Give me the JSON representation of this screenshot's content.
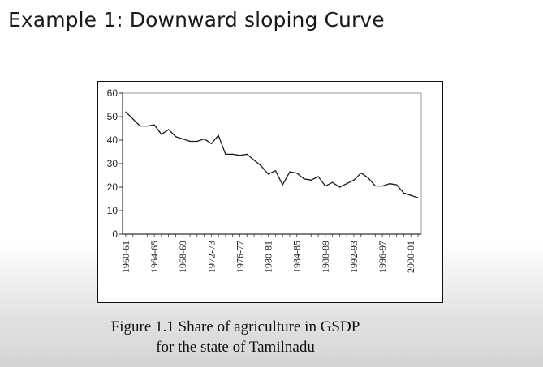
{
  "slide": {
    "title": "Example 1: Downward sloping Curve"
  },
  "caption": {
    "line1": "Figure 1.1 Share of agriculture in GSDP",
    "line2": "for the state of Tamilnadu"
  },
  "chart_data": {
    "type": "line",
    "title": "",
    "xlabel": "",
    "ylabel": "",
    "ylim": [
      0,
      60
    ],
    "yticks": [
      0,
      10,
      20,
      30,
      40,
      50,
      60
    ],
    "xtick_labels": [
      "1960-61",
      "1964-65",
      "1968-69",
      "1972-73",
      "1976-77",
      "1980-81",
      "1984-85",
      "1988-89",
      "1992-93",
      "1996-97",
      "2000-01"
    ],
    "series": [
      {
        "x": [
          "1960-61",
          "1961-62",
          "1962-63",
          "1963-64",
          "1964-65",
          "1965-66",
          "1966-67",
          "1967-68",
          "1968-69",
          "1969-70",
          "1970-71",
          "1971-72",
          "1972-73",
          "1973-74",
          "1974-75",
          "1975-76",
          "1976-77",
          "1977-78",
          "1978-79",
          "1979-80",
          "1980-81",
          "1981-82",
          "1982-83",
          "1983-84",
          "1984-85",
          "1985-86",
          "1986-87",
          "1987-88",
          "1988-89",
          "1989-90",
          "1990-91",
          "1991-92",
          "1992-93",
          "1993-94",
          "1994-95",
          "1995-96",
          "1996-97",
          "1997-98",
          "1998-99",
          "1999-00",
          "2000-01",
          "2001-02"
        ],
        "values": [
          52,
          49,
          46,
          46,
          46.5,
          42.5,
          44.5,
          41.5,
          40.5,
          39.5,
          39.5,
          40.5,
          38.5,
          42,
          34,
          34,
          33.5,
          34,
          31.5,
          29,
          25.5,
          27,
          21,
          26.5,
          26,
          23.5,
          23,
          24.5,
          20.5,
          22,
          20,
          21.5,
          23,
          26,
          24,
          20.5,
          20.5,
          21.5,
          21,
          17.5,
          16.5,
          15.5
        ]
      }
    ],
    "colors": {
      "line": "#1a1a1a",
      "axis": "#333333",
      "grid": false
    }
  }
}
